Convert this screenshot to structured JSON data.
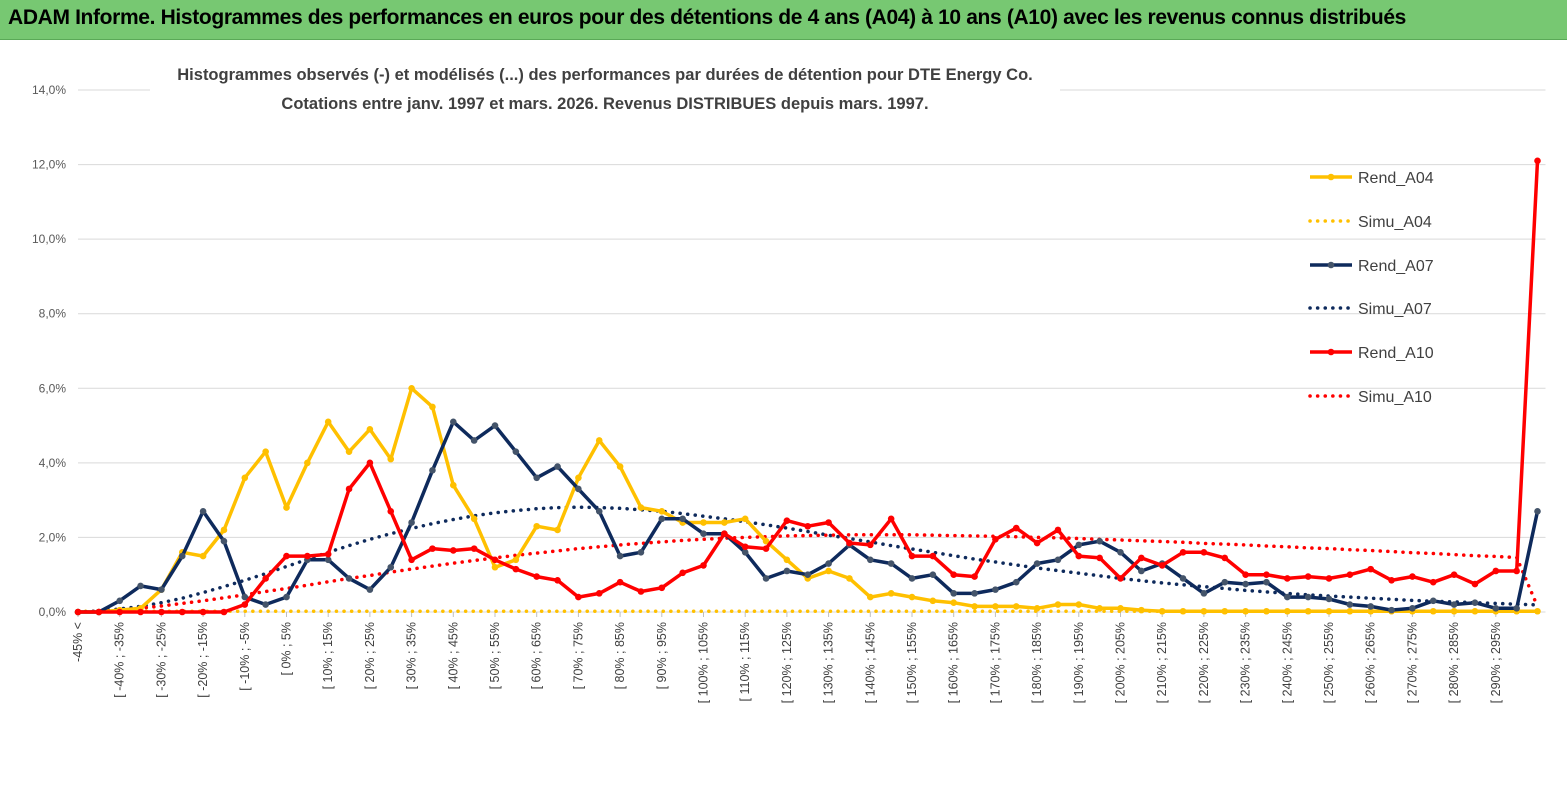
{
  "banner": {
    "title": "ADAM Informe. Histogrammes des performances en euros pour des détentions de 4 ans (A04) à 10 ans (A10) avec les revenus connus distribués"
  },
  "colors": {
    "banner_bg": "#77c872",
    "a04": "#ffc000",
    "a07": "#0e2a5c",
    "a07_marker": "#44546a",
    "a10": "#ff0000",
    "grid": "#d9d9d9"
  },
  "chart_data": {
    "type": "line",
    "title_lines": [
      "Histogrammes observés (-)  et modélisés (...) des performances par durées de détention pour DTE Energy Co.",
      "Cotations entre janv. 1997 et mars. 2026.  Revenus DISTRIBUES depuis mars. 1997."
    ],
    "xlabel": "",
    "ylabel": "",
    "ylim": [
      0,
      14
    ],
    "y_ticks": [
      "0,0%",
      "2,0%",
      "4,0%",
      "6,0%",
      "8,0%",
      "10,0%",
      "12,0%",
      "14,0%"
    ],
    "grid": "horizontal",
    "legend_position": "right",
    "x_labels": [
      "-45% <",
      "[ -40% ; -35%",
      "[ -30% ; -25%",
      "[ -20% ; -15%",
      "[ -10% ; -5%",
      "[ 0% ; 5%",
      "[ 10% ; 15%",
      "[ 20% ; 25%",
      "[ 30% ; 35%",
      "[ 40% ; 45%",
      "[ 50% ; 55%",
      "[ 60% ; 65%",
      "[ 70% ; 75%",
      "[ 80% ; 85%",
      "[ 90% ; 95%",
      "[ 100% ; 105%",
      "[ 110% ; 115%",
      "[ 120% ; 125%",
      "[ 130% ; 135%",
      "[ 140% ; 145%",
      "[ 150% ; 155%",
      "[ 160% ; 165%",
      "[ 170% ; 175%",
      "[ 180% ; 185%",
      "[ 190% ; 195%",
      "[ 200% ; 205%",
      "[ 210% ; 215%",
      "[ 220% ; 225%",
      "[ 230% ; 235%",
      "[ 240% ; 245%",
      "[ 250% ; 255%",
      "[ 260% ; 265%",
      "[ 270% ; 275%",
      "[ 280% ; 285%",
      "[ 290% ; 295%"
    ],
    "series": [
      {
        "name": "Rend_A04",
        "style": "solid",
        "color": "#ffc000",
        "values": [
          0,
          0,
          0.05,
          0.1,
          0.6,
          1.6,
          1.5,
          2.2,
          3.6,
          4.3,
          2.8,
          4.0,
          5.1,
          4.3,
          4.9,
          4.1,
          6.0,
          5.5,
          3.4,
          2.5,
          1.2,
          1.4,
          2.3,
          2.2,
          3.6,
          4.6,
          3.9,
          2.8,
          2.7,
          2.4,
          2.4,
          2.4,
          2.5,
          1.9,
          1.4,
          0.9,
          1.1,
          0.9,
          0.4,
          0.5,
          0.4,
          0.3,
          0.25,
          0.15,
          0.15,
          0.15,
          0.1,
          0.2,
          0.2,
          0.1,
          0.1,
          0.05,
          0.02,
          0.02,
          0.02,
          0.02,
          0.02,
          0.02,
          0.02,
          0.02,
          0.02,
          0.02,
          0.02,
          0.02,
          0.02,
          0.02,
          0.02,
          0.02,
          0.02,
          0.02,
          0.02
        ]
      },
      {
        "name": "Simu_A04",
        "style": "dotted",
        "color": "#ffc000",
        "values": [
          0.02,
          0.02,
          0.02,
          0.02,
          0.02,
          0.02,
          0.02,
          0.02,
          0.02,
          0.02,
          0.02,
          0.02,
          0.02,
          0.02,
          0.02,
          0.02,
          0.02,
          0.02,
          0.02,
          0.02,
          0.02,
          0.02,
          0.02,
          0.02,
          0.02,
          0.02,
          0.02,
          0.02,
          0.02,
          0.02,
          0.02,
          0.02,
          0.02,
          0.02,
          0.02,
          0.02,
          0.02,
          0.02,
          0.02,
          0.02,
          0.02,
          0.02,
          0.02,
          0.02,
          0.02,
          0.02,
          0.02,
          0.02,
          0.02,
          0.02,
          0.02,
          0.02,
          0.02,
          0.02,
          0.02,
          0.02,
          0.02,
          0.02,
          0.02,
          0.02,
          0.02,
          0.02,
          0.02,
          0.02,
          0.02,
          0.02,
          0.02,
          0.02,
          0.02,
          0.02,
          0.02
        ]
      },
      {
        "name": "Rend_A07",
        "style": "solid",
        "color": "#0e2a5c",
        "values": [
          0,
          0,
          0.3,
          0.7,
          0.6,
          1.5,
          2.7,
          1.9,
          0.4,
          0.2,
          0.4,
          1.4,
          1.4,
          0.9,
          0.6,
          1.2,
          2.4,
          3.8,
          5.1,
          4.6,
          5.0,
          4.3,
          3.6,
          3.9,
          3.3,
          2.7,
          1.5,
          1.6,
          2.5,
          2.5,
          2.1,
          2.1,
          1.6,
          0.9,
          1.1,
          1.0,
          1.3,
          1.8,
          1.4,
          1.3,
          0.9,
          1.0,
          0.5,
          0.5,
          0.6,
          0.8,
          1.3,
          1.4,
          1.8,
          1.9,
          1.6,
          1.1,
          1.3,
          0.9,
          0.5,
          0.8,
          0.75,
          0.8,
          0.4,
          0.4,
          0.35,
          0.2,
          0.15,
          0.05,
          0.1,
          0.3,
          0.2,
          0.25,
          0.1,
          0.1,
          2.7
        ]
      },
      {
        "name": "Simu_A07",
        "style": "dotted",
        "color": "#0e2a5c",
        "values": [
          0,
          0.03,
          0.08,
          0.15,
          0.25,
          0.37,
          0.52,
          0.68,
          0.85,
          1.03,
          1.22,
          1.41,
          1.6,
          1.78,
          1.95,
          2.1,
          2.24,
          2.37,
          2.48,
          2.58,
          2.66,
          2.72,
          2.77,
          2.8,
          2.81,
          2.8,
          2.78,
          2.74,
          2.7,
          2.64,
          2.57,
          2.5,
          2.42,
          2.34,
          2.25,
          2.16,
          2.06,
          1.97,
          1.88,
          1.78,
          1.69,
          1.6,
          1.51,
          1.42,
          1.34,
          1.26,
          1.18,
          1.11,
          1.04,
          0.97,
          0.9,
          0.84,
          0.78,
          0.73,
          0.68,
          0.63,
          0.58,
          0.54,
          0.5,
          0.46,
          0.43,
          0.4,
          0.37,
          0.34,
          0.31,
          0.29,
          0.27,
          0.25,
          0.23,
          0.21,
          0.19
        ]
      },
      {
        "name": "Rend_A10",
        "style": "solid",
        "color": "#ff0000",
        "values": [
          0,
          0,
          0,
          0,
          0,
          0,
          0,
          0,
          0.2,
          0.9,
          1.5,
          1.5,
          1.55,
          3.3,
          4.0,
          2.7,
          1.4,
          1.7,
          1.65,
          1.7,
          1.4,
          1.15,
          0.95,
          0.85,
          0.4,
          0.5,
          0.8,
          0.55,
          0.65,
          1.05,
          1.25,
          2.1,
          1.75,
          1.7,
          2.45,
          2.3,
          2.4,
          1.85,
          1.8,
          2.5,
          1.5,
          1.5,
          1.0,
          0.95,
          1.95,
          2.25,
          1.85,
          2.2,
          1.5,
          1.45,
          0.9,
          1.45,
          1.25,
          1.6,
          1.6,
          1.45,
          1.0,
          1.0,
          0.9,
          0.95,
          0.9,
          1.0,
          1.15,
          0.85,
          0.95,
          0.8,
          1.0,
          0.75,
          1.1,
          1.1,
          12.1
        ]
      },
      {
        "name": "Simu_A10",
        "style": "dotted",
        "color": "#ff0000",
        "values": [
          0,
          0.02,
          0.05,
          0.1,
          0.16,
          0.23,
          0.3,
          0.38,
          0.46,
          0.55,
          0.63,
          0.72,
          0.81,
          0.9,
          0.98,
          1.07,
          1.15,
          1.23,
          1.31,
          1.38,
          1.45,
          1.52,
          1.58,
          1.64,
          1.7,
          1.75,
          1.8,
          1.84,
          1.88,
          1.92,
          1.95,
          1.98,
          2.0,
          2.02,
          2.04,
          2.05,
          2.06,
          2.07,
          2.07,
          2.07,
          2.07,
          2.06,
          2.05,
          2.04,
          2.03,
          2.02,
          2.0,
          1.99,
          1.97,
          1.95,
          1.93,
          1.91,
          1.89,
          1.87,
          1.84,
          1.82,
          1.8,
          1.77,
          1.75,
          1.72,
          1.7,
          1.67,
          1.65,
          1.62,
          1.59,
          1.57,
          1.54,
          1.51,
          1.49,
          1.46,
          0.15
        ]
      }
    ]
  }
}
